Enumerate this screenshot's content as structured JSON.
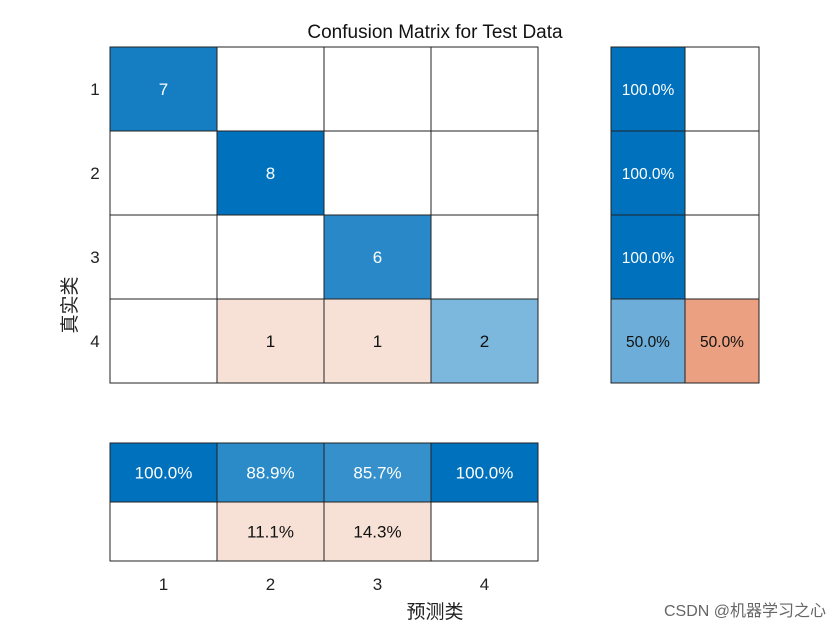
{
  "chart_data": {
    "type": "heatmap",
    "title": "Confusion Matrix for Test Data",
    "xlabel": "预测类",
    "ylabel": "真实类",
    "row_classes": [
      "1",
      "2",
      "3",
      "4"
    ],
    "col_classes": [
      "1",
      "2",
      "3",
      "4"
    ],
    "matrix": [
      [
        7,
        null,
        null,
        null
      ],
      [
        null,
        8,
        null,
        null
      ],
      [
        null,
        null,
        6,
        null
      ],
      [
        null,
        1,
        1,
        2
      ]
    ],
    "row_summary": [
      [
        "100.0%",
        ""
      ],
      [
        "100.0%",
        ""
      ],
      [
        "100.0%",
        ""
      ],
      [
        "50.0%",
        "50.0%"
      ]
    ],
    "column_summary": [
      [
        "100.0%",
        "88.9%",
        "85.7%",
        "100.0%"
      ],
      [
        "",
        "11.1%",
        "14.3%",
        ""
      ]
    ],
    "colors": {
      "diag_max": "#0072bd",
      "correct_summary": "#0072bd",
      "incorrect_summary": "#d95319",
      "incorrect_cell": "#f7e1d6",
      "incorrect_col_summary": "#f7e1d6",
      "grid": "#222222",
      "text_dark": "#111111",
      "text_light": "#ffffff"
    }
  },
  "watermark": "CSDN @机器学习之心"
}
